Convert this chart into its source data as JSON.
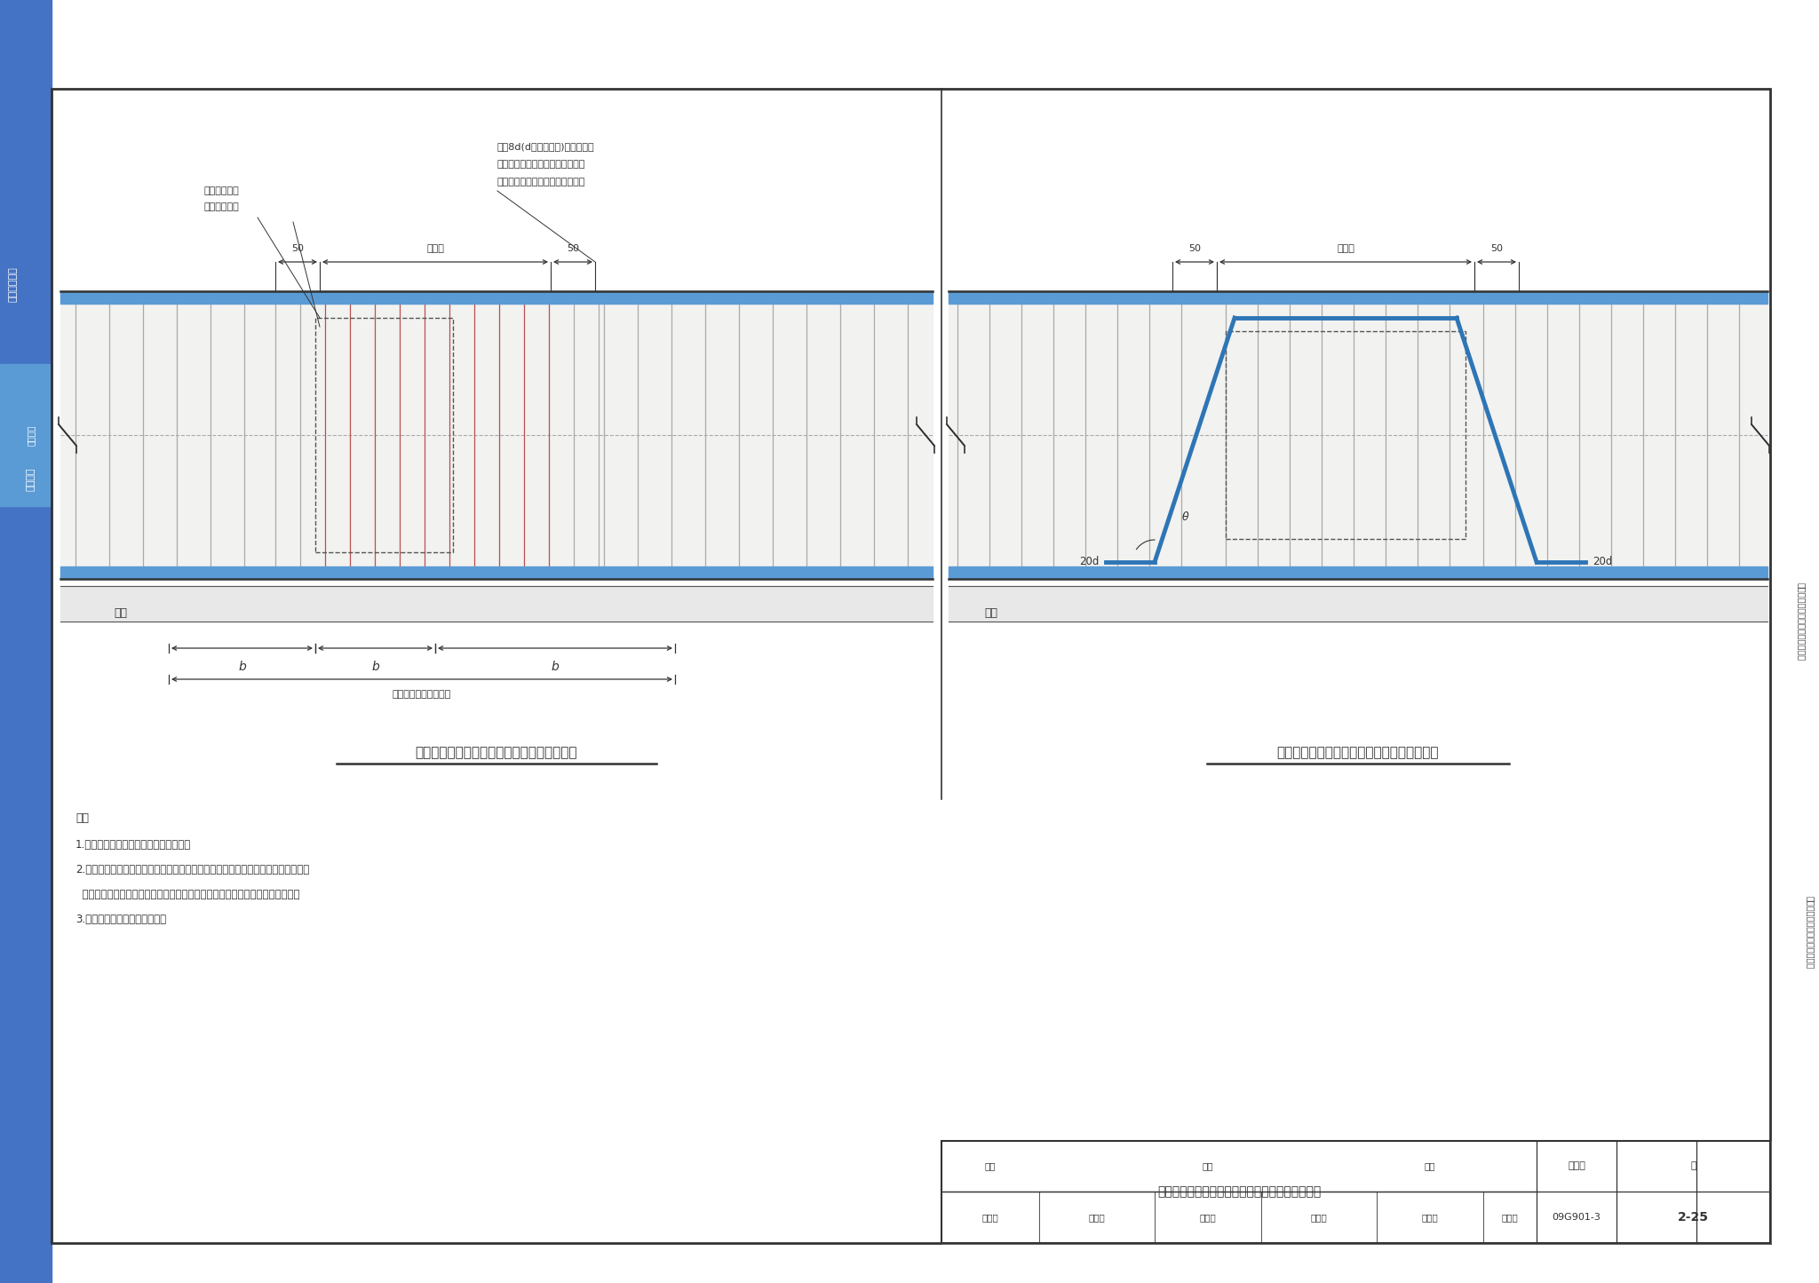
{
  "white": "#ffffff",
  "light_gray": "#f0f0ee",
  "blue_fill": "#5b9bd5",
  "blue_dark": "#2e75b6",
  "gray_line": "#666666",
  "dark": "#333333",
  "sidebar_blue": "#4472c4",
  "left_diagram_title": "基础主梁与基础次梁相交处附加箍筋排布构造",
  "right_diagram_title": "基础主梁与基础次梁相交处反扣钢筋排布构造",
  "note_title": "注：",
  "notes": [
    "1.反扣的钢筋高度应根据主梁高度推算。",
    "2.反扣钢筋顶部平直段与基础主梁顶部纵筋之间的净距离应满足规范要求，当空间不",
    "  能满足时，应将反扣钢筋顶部平直段置于下一排，但不应低于次梁的顶面标高。",
    "3.反扣钢筋范围内的箍筋照设。"
  ],
  "ann1_line1": "该范围按基础",
  "ann1_line2": "主梁箍筋设置",
  "ann2_line1": "间距8d(d为箍筋直径)；且其最大",
  "ann2_line2": "间距应＜所在区域的箍筋间距，附",
  "ann2_line3": "加箍筋应在基础次梁两侧对称设置",
  "label_50": "50",
  "label_cilian": "次梁宽",
  "label_b": "b",
  "label_daji": "附加箍筋最大布置范围",
  "label_dieceng": "垫层",
  "label_20d_left": "20d",
  "label_20d_right": "20d",
  "label_theta": "θ",
  "table_title": "基础主梁与基础次梁相交处附加横向钢筋排布构造",
  "table_atlas_label": "图集号",
  "table_atlas_val": "09G901-3",
  "table_review": "审核",
  "table_review_val": "黄志刚",
  "table_draw_val": "重乔地",
  "table_check": "校对",
  "table_check_val": "张工文",
  "table_check2_val": "张之义",
  "table_design": "设计",
  "table_design_val": "王怀元",
  "table_design2_val": "王怀之",
  "table_page_label": "页",
  "table_page_val": "2-25",
  "sidebar_text1": "一般构造要求",
  "sidebar_text2": "筏形基础",
  "right_side_text1": "筏形基础、箱形基础和地下室结构",
  "right_side_text2": "独立基础、条形基础、桩基承台"
}
